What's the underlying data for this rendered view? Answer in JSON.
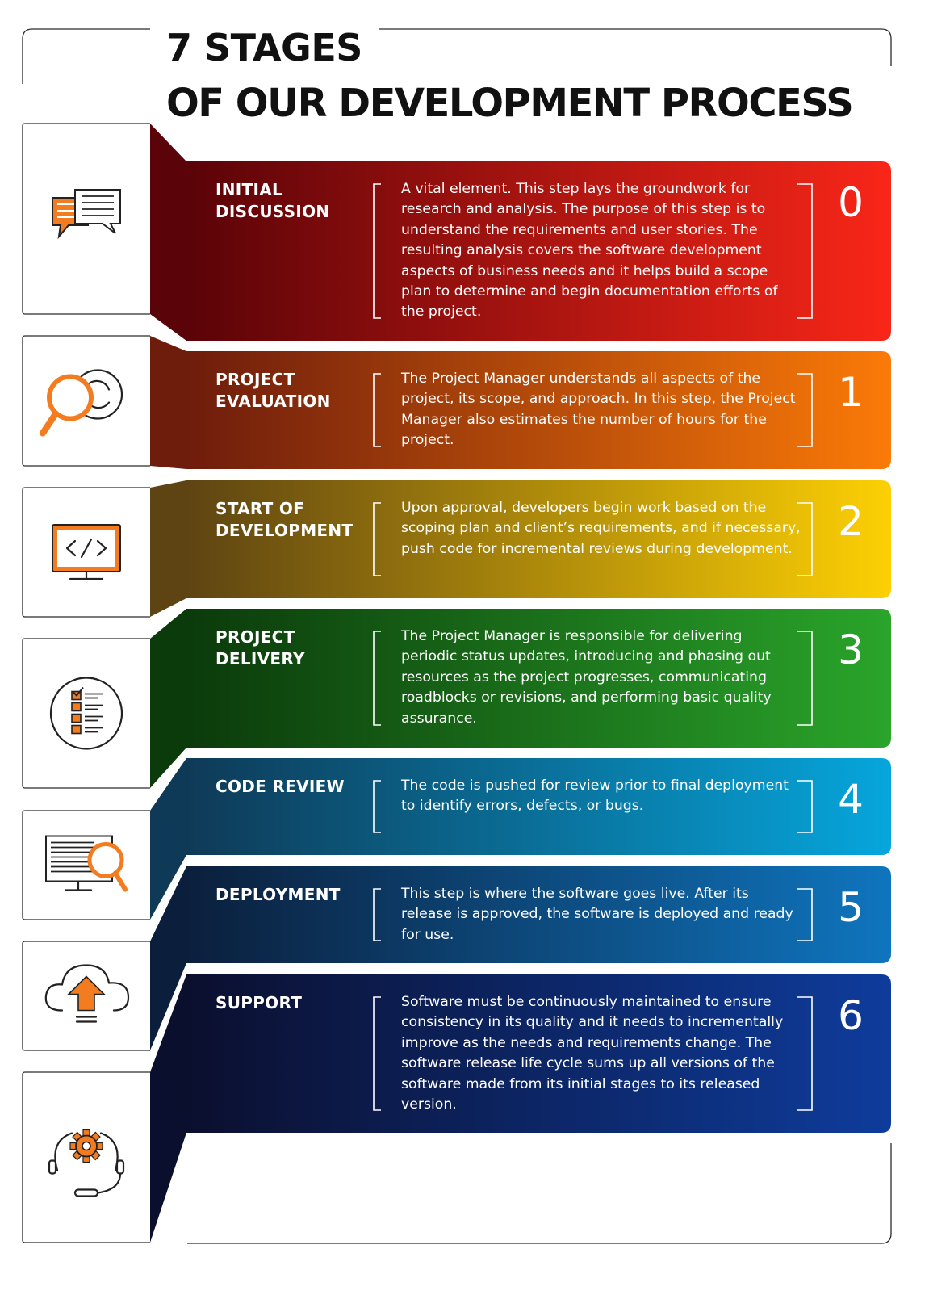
{
  "title": {
    "line1": "7 STAGES",
    "line2": "OF OUR DEVELOPMENT PROCESS"
  },
  "colors": {
    "accent": "#f47c20",
    "icon_stroke": "#222222"
  },
  "stages": [
    {
      "number": "0",
      "name": "INITIAL\nDISCUSSION",
      "icon": "chat-bubbles-icon",
      "description": "A vital element. This step lays the groundwork for research and analysis. The purpose of this step is to understand the requirements and user stories. The resulting analysis covers the software development aspects of business needs and it helps build a scope plan to determine and begin documentation efforts of the project.",
      "color_start": "#5a0308",
      "color_end": "#f92618"
    },
    {
      "number": "1",
      "name": "PROJECT\nEVALUATION",
      "icon": "magnifier-refresh-icon",
      "description": "The Project Manager understands all aspects of the project, its scope, and approach. In this step, the Project Manager also estimates the number of hours for the project.",
      "color_start": "#6e1c0c",
      "color_end": "#fb7a08"
    },
    {
      "number": "2",
      "name": "START OF\nDEVELOPMENT",
      "icon": "code-monitor-icon",
      "description": "Upon approval, developers begin work based on the scoping plan and client’s requirements, and if necessary, push code for incremental reviews during development.",
      "color_start": "#5e4412",
      "color_end": "#fdd004"
    },
    {
      "number": "3",
      "name": "PROJECT\nDELIVERY",
      "icon": "checklist-icon",
      "description": "The Project Manager is responsible for delivering periodic status updates, introducing and phasing out resources as the project progresses, communicating roadblocks or revisions, and performing basic quality assurance.",
      "color_start": "#0b3a0b",
      "color_end": "#2aa52a"
    },
    {
      "number": "4",
      "name": "CODE REVIEW",
      "icon": "monitor-search-icon",
      "description": "The code is pushed for review prior to final deployment to identify errors, defects, or bugs.",
      "color_start": "#0e3a57",
      "color_end": "#06a6dc"
    },
    {
      "number": "5",
      "name": "DEPLOYMENT",
      "icon": "cloud-upload-icon",
      "description": "This step is where the software goes live. After its release is approved, the software is deployed and ready for use.",
      "color_start": "#0b1f3c",
      "color_end": "#0f75be"
    },
    {
      "number": "6",
      "name": "SUPPORT",
      "icon": "support-gear-icon",
      "description": "Software must be continuously maintained to ensure consistency in its quality and it needs to incrementally improve as the needs and requirements change. The software release life cycle sums up all versions of the software made from its initial stages to its released version.",
      "color_start": "#0b0f2e",
      "color_end": "#0e3c9c"
    }
  ]
}
